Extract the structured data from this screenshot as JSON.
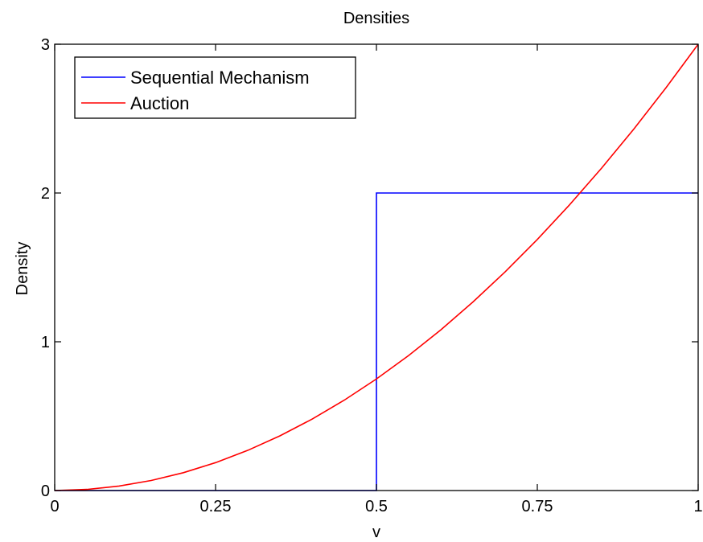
{
  "chart_data": {
    "type": "line",
    "title": "Densities",
    "xlabel": "v",
    "ylabel": "Density",
    "xlim": [
      0,
      1
    ],
    "ylim": [
      0,
      3
    ],
    "xticks": [
      0,
      0.25,
      0.5,
      0.75,
      1
    ],
    "xtick_labels": [
      "0",
      "0.25",
      "0.5",
      "0.75",
      "1"
    ],
    "yticks": [
      0,
      1,
      2,
      3
    ],
    "ytick_labels": [
      "0",
      "1",
      "2",
      "3"
    ],
    "grid": false,
    "legend_position": "top-left",
    "series": [
      {
        "name": "Sequential Mechanism",
        "color": "#0000ff",
        "x": [
          0,
          0.5,
          0.5,
          1
        ],
        "y": [
          0,
          0,
          2,
          2
        ]
      },
      {
        "name": "Auction",
        "color": "#ff0000",
        "x": [
          0,
          0.05,
          0.1,
          0.15,
          0.2,
          0.25,
          0.3,
          0.35,
          0.4,
          0.45,
          0.5,
          0.55,
          0.6,
          0.65,
          0.7,
          0.75,
          0.8,
          0.85,
          0.9,
          0.95,
          1
        ],
        "y": [
          0,
          0.0075,
          0.03,
          0.0675,
          0.12,
          0.1875,
          0.27,
          0.3675,
          0.48,
          0.6075,
          0.75,
          0.9075,
          1.08,
          1.2675,
          1.47,
          1.6875,
          1.92,
          2.1675,
          2.43,
          2.7075,
          3
        ]
      }
    ]
  }
}
